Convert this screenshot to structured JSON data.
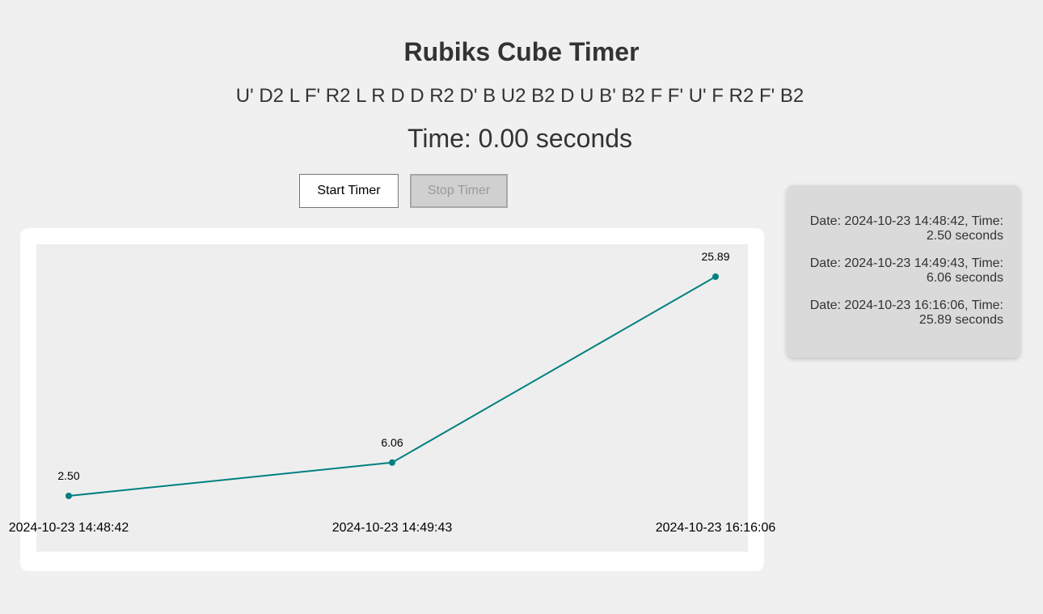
{
  "app": {
    "title": "Rubiks Cube Timer",
    "scramble": "U' D2 L F' R2 L R D D R2 D' B U2 B2 D U B' B2 F F' U' F R2 F' B2",
    "time_text": "Time: 0.00 seconds"
  },
  "controls": {
    "start_label": "Start Timer",
    "stop_label": "Stop Timer",
    "stop_disabled": true
  },
  "history": {
    "items": [
      {
        "text": "Date: 2024-10-23 14:48:42, Time: 2.50 seconds"
      },
      {
        "text": "Date: 2024-10-23 14:49:43, Time: 6.06 seconds"
      },
      {
        "text": "Date: 2024-10-23 16:16:06, Time: 25.89 seconds"
      }
    ]
  },
  "chart_data": {
    "type": "line",
    "categories": [
      "2024-10-23 14:48:42",
      "2024-10-23 14:49:43",
      "2024-10-23 16:16:06"
    ],
    "values": [
      2.5,
      6.06,
      25.89
    ],
    "data_labels": [
      "2.50",
      "6.06",
      "25.89"
    ],
    "ylim": [
      0,
      30
    ],
    "grid": false,
    "title": "",
    "xlabel": "",
    "ylabel": "",
    "colors": {
      "line": "#008080",
      "plot_background": "#eeeeee",
      "label": "#000000"
    }
  }
}
